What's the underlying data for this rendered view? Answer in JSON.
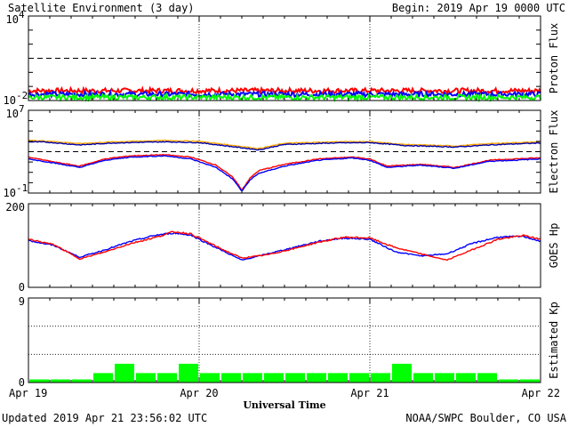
{
  "header": {
    "title": "Satellite Environment (3 day)",
    "begin": "Begin:  2019 Apr 19 0000 UTC"
  },
  "footer": {
    "updated": "Updated 2019 Apr 21 23:56:02 UTC",
    "credit": "NOAA/SWPC Boulder, CO USA"
  },
  "colors": {
    "red": "#ff0000",
    "blue": "#0000ff",
    "green": "#00ff00",
    "orange": "#ffa500",
    "navy": "#0000aa",
    "kp_green": "#00ff00"
  },
  "chart_data": [
    {
      "type": "line",
      "ylabel": "Proton Flux",
      "yscale": "log",
      "ylim": [
        0.01,
        10000
      ],
      "yticks": [
        {
          "base": "10",
          "exp": "4"
        },
        {
          "base": "10",
          "exp": "-2"
        }
      ],
      "threshold": 10,
      "xlim": [
        0,
        3
      ],
      "series": [
        {
          "color": "red",
          "level": 0.05
        },
        {
          "color": "blue",
          "level": 0.028
        },
        {
          "color": "green",
          "level": 0.017
        }
      ]
    },
    {
      "type": "line",
      "ylabel": "Electron Flux",
      "yscale": "log",
      "ylim": [
        0.1,
        10000000
      ],
      "yticks": [
        {
          "base": "10",
          "exp": "7"
        },
        {
          "base": "10",
          "exp": "-1"
        }
      ],
      "threshold": 1000,
      "xlim": [
        0,
        3
      ],
      "series": [
        {
          "color": "orange",
          "x": [
            0,
            0.1,
            0.3,
            0.5,
            0.8,
            1.0,
            1.2,
            1.35,
            1.5,
            1.8,
            2.0,
            2.2,
            2.5,
            2.7,
            3.0
          ],
          "y": [
            12000,
            11000,
            6000,
            9000,
            12000,
            10000,
            4000,
            2000,
            6500,
            9000,
            9500,
            5000,
            3500,
            6000,
            9000
          ]
        },
        {
          "color": "navy",
          "x": [
            0,
            0.1,
            0.3,
            0.5,
            0.8,
            1.0,
            1.2,
            1.35,
            1.5,
            1.8,
            2.0,
            2.2,
            2.5,
            2.7,
            3.0
          ],
          "y": [
            9000,
            8500,
            4500,
            7000,
            9000,
            7500,
            3000,
            1500,
            5000,
            7000,
            7500,
            4000,
            2800,
            4500,
            7000
          ]
        },
        {
          "color": "red",
          "x": [
            0,
            0.15,
            0.3,
            0.45,
            0.6,
            0.8,
            0.95,
            1.1,
            1.2,
            1.25,
            1.3,
            1.35,
            1.5,
            1.7,
            1.9,
            2.0,
            2.1,
            2.3,
            2.5,
            2.7,
            2.85,
            3.0
          ],
          "y": [
            300,
            100,
            40,
            200,
            400,
            500,
            300,
            50,
            3,
            0.2,
            3,
            15,
            60,
            200,
            300,
            200,
            40,
            60,
            30,
            150,
            200,
            250
          ]
        },
        {
          "color": "blue",
          "x": [
            0,
            0.15,
            0.3,
            0.45,
            0.6,
            0.8,
            0.95,
            1.1,
            1.2,
            1.25,
            1.3,
            1.35,
            1.5,
            1.7,
            1.9,
            2.0,
            2.1,
            2.3,
            2.5,
            2.7,
            2.85,
            3.0
          ],
          "y": [
            200,
            80,
            30,
            150,
            300,
            400,
            200,
            30,
            2,
            0.15,
            2,
            8,
            40,
            150,
            250,
            150,
            30,
            50,
            25,
            120,
            150,
            200
          ]
        }
      ]
    },
    {
      "type": "line",
      "ylabel": "GOES Hp",
      "ylim": [
        0,
        200
      ],
      "yticks": [
        "200",
        "0"
      ],
      "xlim": [
        0,
        3
      ],
      "series": [
        {
          "color": "blue",
          "x": [
            0,
            0.15,
            0.3,
            0.45,
            0.6,
            0.75,
            0.85,
            0.95,
            1.05,
            1.15,
            1.25,
            1.4,
            1.55,
            1.7,
            1.85,
            2.0,
            2.15,
            2.3,
            2.45,
            2.6,
            2.75,
            2.9,
            3.0
          ],
          "y": [
            112,
            100,
            72,
            90,
            110,
            125,
            130,
            125,
            105,
            85,
            65,
            80,
            95,
            110,
            118,
            115,
            85,
            75,
            80,
            105,
            120,
            122,
            110
          ]
        },
        {
          "color": "red",
          "x": [
            0,
            0.15,
            0.3,
            0.45,
            0.6,
            0.75,
            0.85,
            0.95,
            1.05,
            1.15,
            1.25,
            1.4,
            1.55,
            1.7,
            1.85,
            2.0,
            2.15,
            2.3,
            2.45,
            2.6,
            2.75,
            2.9,
            3.0
          ],
          "y": [
            115,
            102,
            68,
            85,
            105,
            120,
            133,
            128,
            108,
            88,
            70,
            78,
            92,
            108,
            120,
            118,
            95,
            80,
            65,
            90,
            115,
            124,
            115
          ]
        }
      ]
    },
    {
      "type": "bar",
      "ylabel": "Estimated Kp",
      "ylim": [
        0,
        9
      ],
      "yticks": [
        "9",
        "0"
      ],
      "gridlines": [
        3,
        6,
        9
      ],
      "categories_count": 24,
      "values": [
        0.33,
        0.33,
        0.33,
        1,
        2,
        1,
        1,
        2,
        1,
        1,
        1,
        1,
        1,
        1,
        1,
        1,
        1,
        2,
        1,
        1,
        1,
        1,
        0.33,
        0.33
      ],
      "color": "kp_green"
    }
  ],
  "xaxis": {
    "title": "Universal Time",
    "ticks": [
      "Apr 19",
      "Apr 20",
      "Apr 21",
      "Apr 22"
    ]
  }
}
